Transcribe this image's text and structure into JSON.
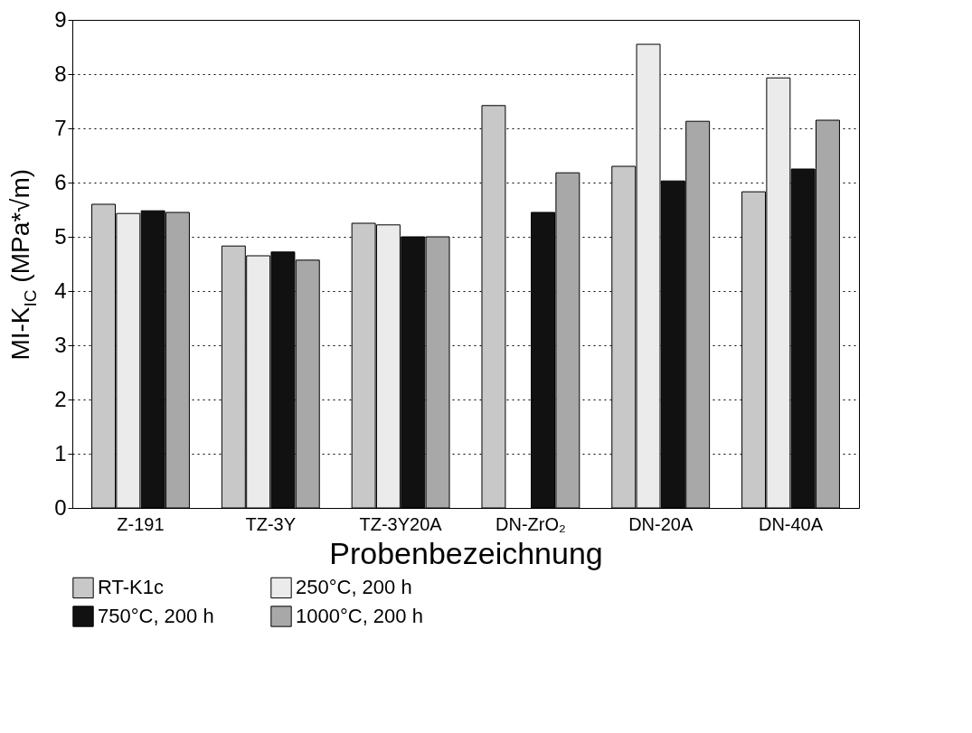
{
  "chart_data": {
    "type": "bar",
    "xlabel": "Probenbezeichnung",
    "ylabel": "MI-K$_{IC}$ (MPa*√m)",
    "categories": [
      "Z-191",
      "TZ-3Y",
      "TZ-3Y20A",
      "DN-ZrO₂",
      "DN-20A",
      "DN-40A"
    ],
    "series": [
      {
        "name": "RT-K1c",
        "color": "#c8c8c8",
        "values": [
          5.6,
          4.83,
          5.25,
          7.42,
          6.3,
          5.83
        ]
      },
      {
        "name": "250°C, 200 h",
        "color": "#ebebeb",
        "values": [
          5.43,
          4.65,
          5.22,
          null,
          8.55,
          7.93
        ]
      },
      {
        "name": "750°C, 200 h",
        "color": "#111111",
        "values": [
          5.48,
          4.72,
          5.0,
          5.45,
          6.03,
          6.25
        ]
      },
      {
        "name": "1000°C, 200 h",
        "color": "#a8a8a8",
        "values": [
          5.45,
          4.57,
          5.0,
          6.18,
          7.13,
          7.15
        ]
      }
    ],
    "ylim": [
      0,
      9
    ],
    "yticks": [
      0,
      1,
      2,
      3,
      4,
      5,
      6,
      7,
      8,
      9
    ],
    "grid": "y",
    "legend": "bottom"
  }
}
